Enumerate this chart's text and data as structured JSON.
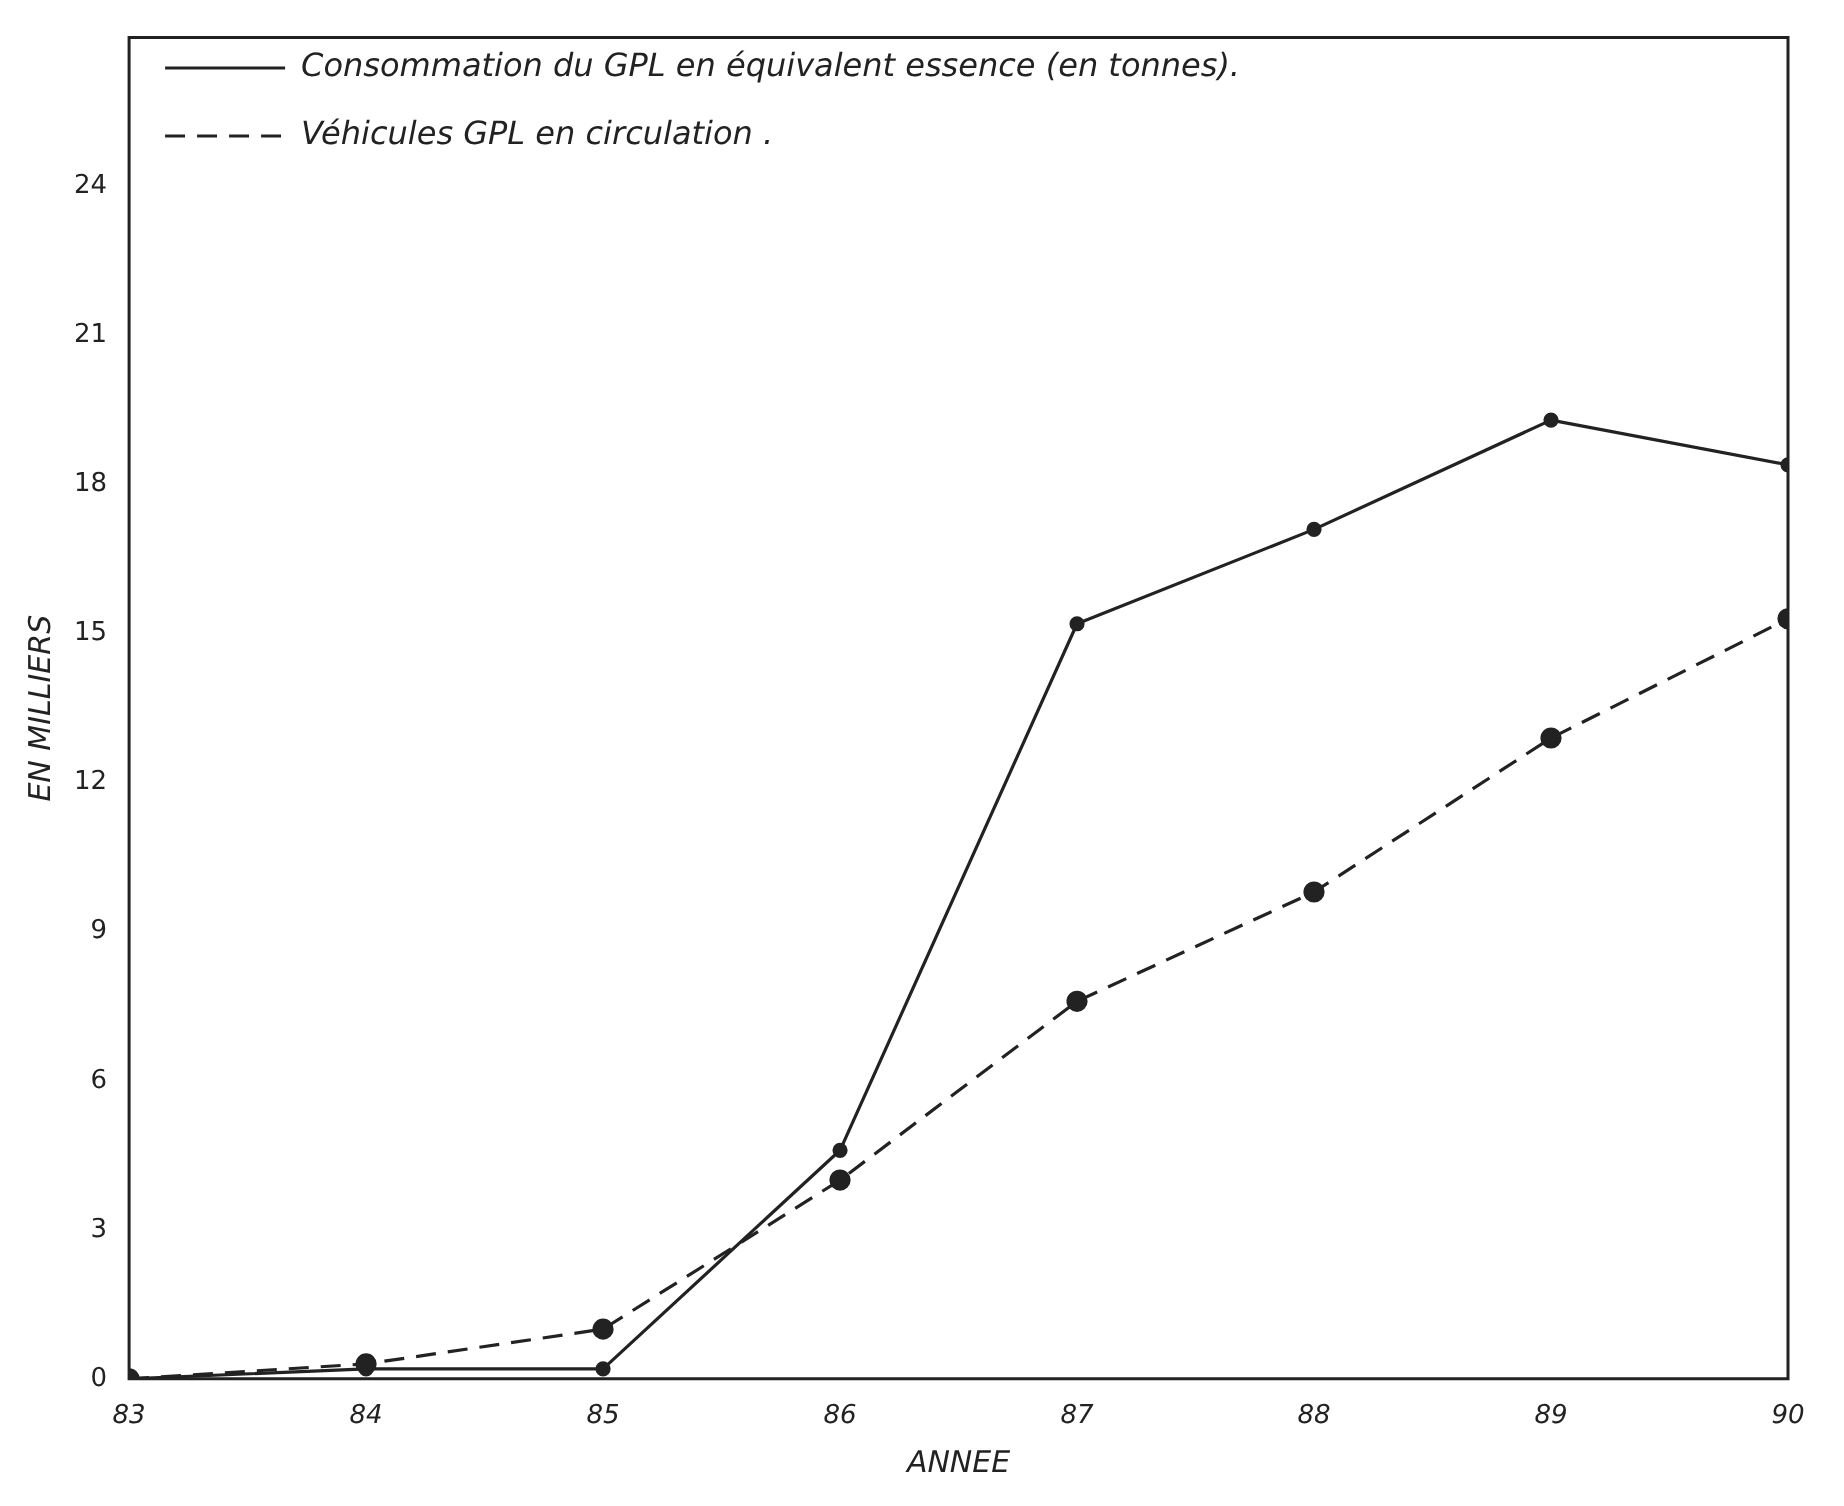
{
  "chart_data": {
    "type": "line",
    "xlabel": "ANNEE",
    "ylabel": "EN MILLIERS",
    "x": [
      83,
      84,
      85,
      86,
      87,
      88,
      89,
      90
    ],
    "xlim": [
      83,
      90
    ],
    "xticks": [
      83,
      84,
      85,
      86,
      87,
      88,
      89,
      90
    ],
    "ylim": [
      0,
      27
    ],
    "yticks": [
      0,
      3,
      6,
      9,
      12,
      15,
      18,
      21,
      24
    ],
    "grid": false,
    "legend": "top left",
    "marker": "circle",
    "series": [
      {
        "name": "Consommation du GPL en équivalent essence (en tonnes).",
        "color": "#222222",
        "line_style": "solid",
        "values": [
          0,
          0.2,
          0.2,
          4.6,
          15.2,
          17.1,
          19.3,
          18.4
        ]
      },
      {
        "name": "Véhicules GPL en circulation .",
        "color": "#222222",
        "line_style": "dashed",
        "values": [
          0,
          0.3,
          1.0,
          4.0,
          7.6,
          9.8,
          12.9,
          15.3
        ]
      }
    ]
  }
}
